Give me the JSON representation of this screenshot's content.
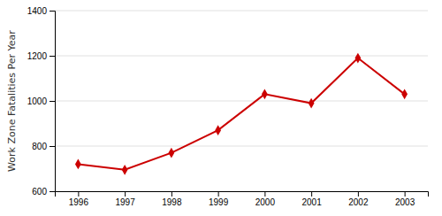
{
  "chart_data": {
    "type": "line",
    "ylabel": "Work Zone Fatalities Per Year",
    "x": [
      1996,
      1997,
      1998,
      1999,
      2000,
      2001,
      2002,
      2003
    ],
    "values": [
      720,
      695,
      770,
      870,
      1030,
      990,
      1190,
      1030
    ],
    "color": "#CC0000",
    "marker": "diamond",
    "xlim": [
      1995.5,
      2003.5
    ],
    "xticks": [
      1996,
      1997,
      1998,
      1999,
      2000,
      2001,
      2002,
      2003
    ],
    "ylim": [
      600,
      1400
    ],
    "yticks": [
      600,
      800,
      1000,
      1200,
      1400
    ],
    "grid": true
  }
}
